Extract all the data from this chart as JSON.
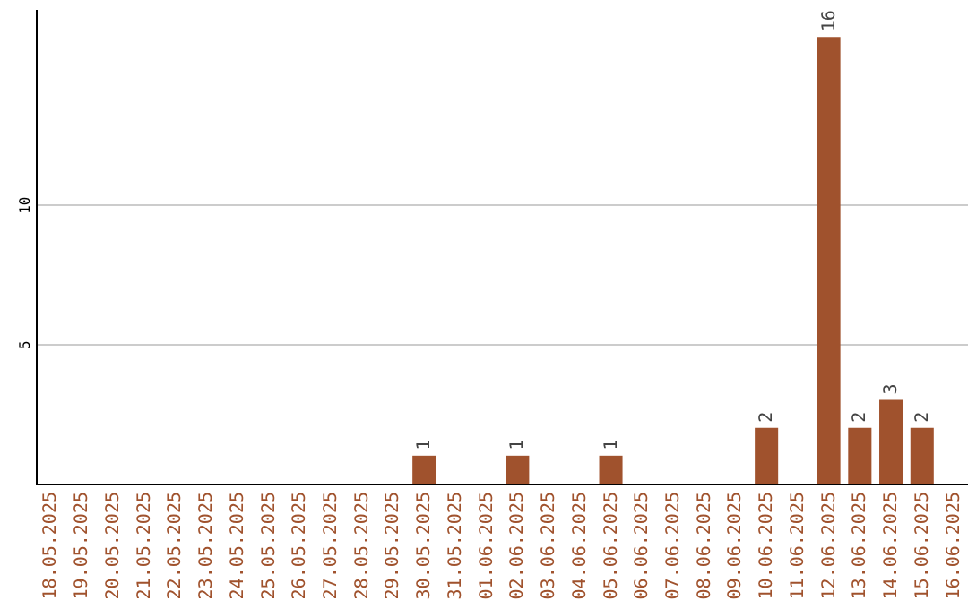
{
  "chart_data": {
    "type": "bar",
    "categories": [
      "18.05.2025",
      "19.05.2025",
      "20.05.2025",
      "21.05.2025",
      "22.05.2025",
      "23.05.2025",
      "24.05.2025",
      "25.05.2025",
      "26.05.2025",
      "27.05.2025",
      "28.05.2025",
      "29.05.2025",
      "30.05.2025",
      "31.05.2025",
      "01.06.2025",
      "02.06.2025",
      "03.06.2025",
      "04.06.2025",
      "05.06.2025",
      "06.06.2025",
      "07.06.2025",
      "08.06.2025",
      "09.06.2025",
      "10.06.2025",
      "11.06.2025",
      "12.06.2025",
      "13.06.2025",
      "14.06.2025",
      "15.06.2025",
      "16.06.2025"
    ],
    "values": [
      0,
      0,
      0,
      0,
      0,
      0,
      0,
      0,
      0,
      0,
      0,
      0,
      1,
      0,
      0,
      1,
      0,
      0,
      1,
      0,
      0,
      0,
      0,
      2,
      0,
      16,
      2,
      3,
      2,
      0
    ],
    "value_labels": [
      null,
      null,
      null,
      null,
      null,
      null,
      null,
      null,
      null,
      null,
      null,
      null,
      "1",
      null,
      null,
      "1",
      null,
      null,
      "1",
      null,
      null,
      null,
      null,
      "2",
      null,
      "16",
      "2",
      "3",
      "2",
      null
    ],
    "color": "#a0522d",
    "ylim": [
      0,
      17
    ],
    "yticks": [
      5,
      10
    ],
    "grid": "y"
  }
}
